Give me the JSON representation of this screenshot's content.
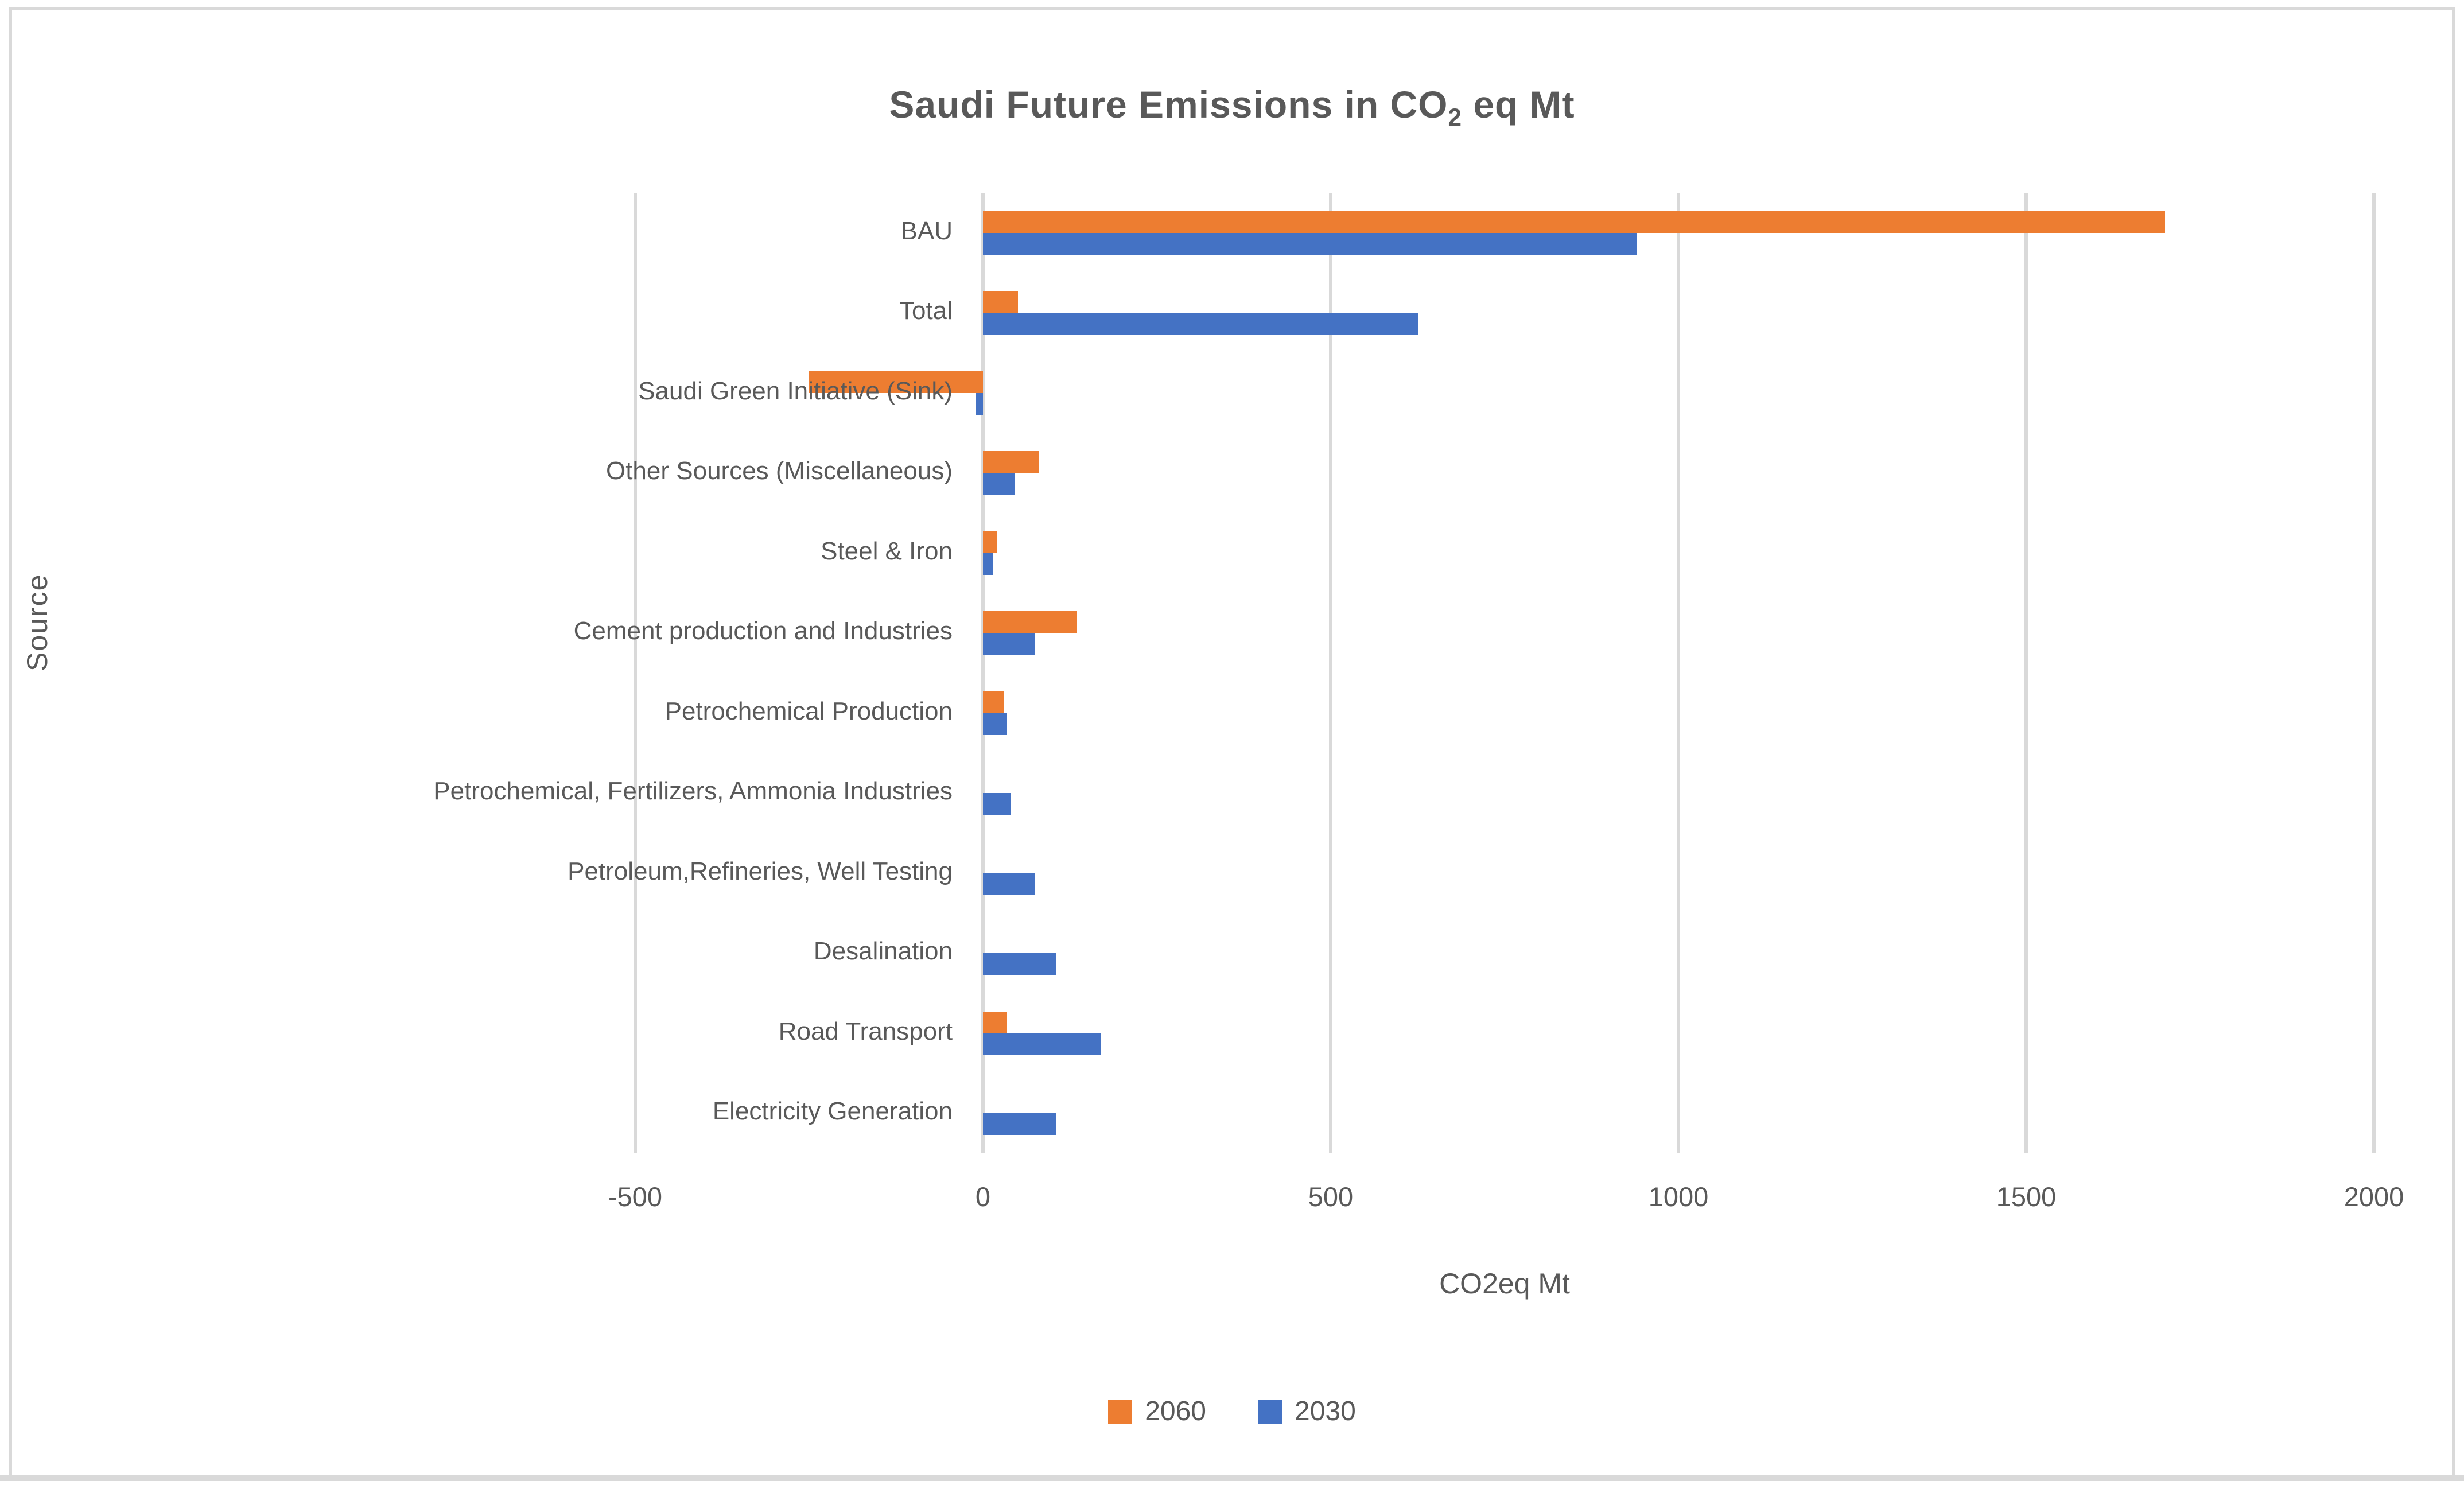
{
  "title": {
    "prefix": "Saudi Future Emissions in CO",
    "subscript": "2",
    "suffix": " eq Mt"
  },
  "x_axis": {
    "title": "CO2eq Mt",
    "tick_labels": [
      "-500",
      "0",
      "500",
      "1000",
      "1500",
      "2000"
    ],
    "tick_values": [
      -500,
      0,
      500,
      1000,
      1500,
      2000
    ]
  },
  "y_axis": {
    "title": "Source"
  },
  "legend": {
    "items": [
      {
        "label": "2060",
        "color": "#ED7D31"
      },
      {
        "label": "2030",
        "color": "#4472C4"
      }
    ]
  },
  "colors": {
    "series_2060": "#ED7D31",
    "series_2030": "#4472C4",
    "gridline": "#D9D9D9",
    "text": "#595959"
  },
  "chart_data": {
    "type": "bar",
    "orientation": "horizontal",
    "title": "Saudi Future Emissions in CO2 eq Mt",
    "xlabel": "CO2eq Mt",
    "ylabel": "Source",
    "xlim": [
      -500,
      2000
    ],
    "grid": true,
    "legend_position": "bottom",
    "categories": [
      "BAU",
      "Total",
      "Saudi Green Initiative (Sink)",
      "Other Sources (Miscellaneous)",
      "Steel & Iron",
      "Cement production and Industries",
      "Petrochemical Production",
      "Petrochemical, Fertilizers, Ammonia Industries",
      "Petroleum,Refineries, Well Testing",
      "Desalination",
      "Road Transport",
      "Electricity Generation"
    ],
    "series": [
      {
        "name": "2060",
        "color": "#ED7D31",
        "values": [
          1700,
          50,
          -250,
          80,
          20,
          135,
          30,
          0,
          0,
          0,
          35,
          0
        ]
      },
      {
        "name": "2030",
        "color": "#4472C4",
        "values": [
          940,
          625,
          -10,
          45,
          15,
          75,
          35,
          40,
          75,
          105,
          170,
          105
        ]
      }
    ]
  }
}
